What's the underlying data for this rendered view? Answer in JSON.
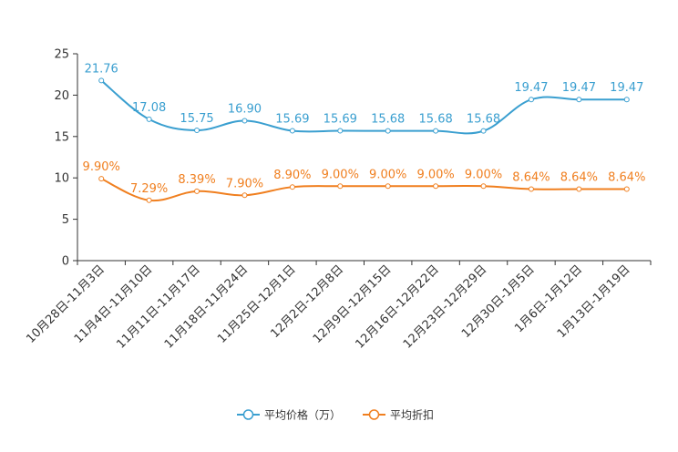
{
  "chart_data": {
    "type": "line",
    "categories": [
      "10月28日-11月3日",
      "11月4日-11月10日",
      "11月11日-11月17日",
      "11月18日-11月24日",
      "11月25日-12月1日",
      "12月2日-12月8日",
      "12月9日-12月15日",
      "12月16日-12月22日",
      "12月23日-12月29日",
      "12月30日-1月5日",
      "1月6日-1月12日",
      "1月13日-1月19日"
    ],
    "ylim": [
      0,
      25
    ],
    "yticks": [
      0,
      5,
      10,
      15,
      20,
      25
    ],
    "legend_position": "bottom",
    "series": [
      {
        "name": "平均价格（万）",
        "color": "#3a9fd0",
        "values": [
          21.76,
          17.08,
          15.75,
          16.9,
          15.69,
          15.69,
          15.68,
          15.68,
          15.68,
          19.47,
          19.47,
          19.47
        ],
        "labels": [
          "21.76",
          "17.08",
          "15.75",
          "16.90",
          "15.69",
          "15.69",
          "15.68",
          "15.68",
          "15.68",
          "19.47",
          "19.47",
          "19.47"
        ]
      },
      {
        "name": "平均折扣",
        "color": "#f07f1f",
        "values": [
          9.9,
          7.29,
          8.39,
          7.9,
          8.9,
          9.0,
          9.0,
          9.0,
          9.0,
          8.64,
          8.64,
          8.64
        ],
        "labels": [
          "9.90%",
          "7.29%",
          "8.39%",
          "7.90%",
          "8.90%",
          "9.00%",
          "9.00%",
          "9.00%",
          "9.00%",
          "8.64%",
          "8.64%",
          "8.64%"
        ]
      }
    ]
  }
}
